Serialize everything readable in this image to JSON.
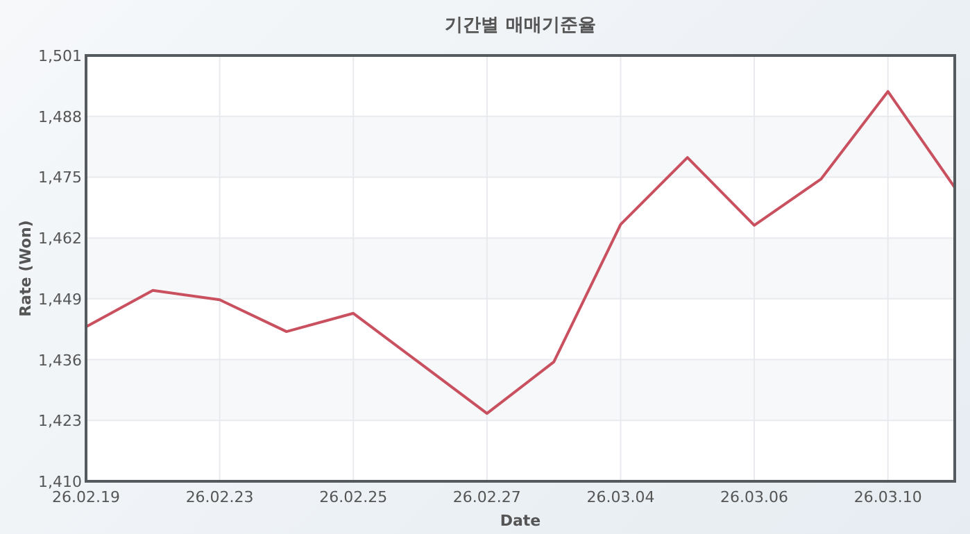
{
  "chart_data": {
    "type": "line",
    "title": "기간별 매매기준율",
    "xlabel": "Date",
    "ylabel": "Rate (Won)",
    "categories": [
      "26.02.19",
      null,
      "26.02.23",
      null,
      "26.02.25",
      null,
      "26.02.27",
      null,
      "26.03.04",
      null,
      "26.03.06",
      null,
      "26.03.10",
      null
    ],
    "series": [
      {
        "color": "#c9505f",
        "values": [
          1443.0,
          1450.8,
          1448.8,
          1442.0,
          1445.9,
          1435.2,
          1424.5,
          1435.5,
          1464.9,
          1479.2,
          1464.7,
          1474.6,
          1493.3,
          1472.8
        ]
      }
    ],
    "ylim": [
      1410,
      1501
    ],
    "yticks": [
      {
        "value": 1410,
        "label": "1,410"
      },
      {
        "value": 1423,
        "label": "1,423"
      },
      {
        "value": 1436,
        "label": "1,436"
      },
      {
        "value": 1449,
        "label": "1,449"
      },
      {
        "value": 1462,
        "label": "1,462"
      },
      {
        "value": 1475,
        "label": "1,475"
      },
      {
        "value": 1488,
        "label": "1,488"
      },
      {
        "value": 1501,
        "label": "1,501"
      }
    ],
    "grid": true,
    "marker": "none",
    "line_style": "solid"
  }
}
